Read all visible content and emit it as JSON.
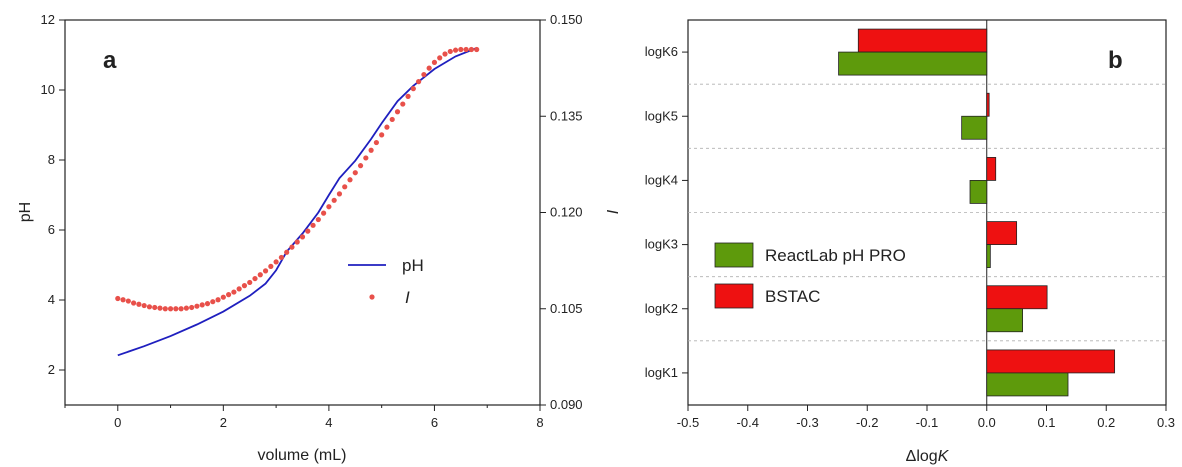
{
  "chart_data": [
    {
      "type": "line",
      "panel_label": "a",
      "xlabel": "volume (mL)",
      "ylabel": "pH",
      "y2label": "I",
      "xlim": [
        -1,
        8
      ],
      "ylim": [
        1,
        12
      ],
      "y2lim": [
        0.09,
        0.15
      ],
      "x_ticks": [
        0,
        2,
        4,
        6,
        8
      ],
      "y_ticks": [
        2,
        4,
        6,
        8,
        10,
        12
      ],
      "y2_ticks": [
        0.09,
        0.105,
        0.12,
        0.135,
        0.15
      ],
      "y2_tick_labels": [
        "0.090",
        "0.105",
        "0.120",
        "0.135",
        "0.150"
      ],
      "legend_position": "center-right",
      "series": [
        {
          "name": "pH",
          "kind": "line",
          "axis": "left",
          "color": "#1f1fbf",
          "x": [
            0,
            0.5,
            1.0,
            1.5,
            2.0,
            2.5,
            2.8,
            3.0,
            3.2,
            3.5,
            3.8,
            4.0,
            4.2,
            4.5,
            4.8,
            5.0,
            5.3,
            5.6,
            6.0,
            6.4,
            6.8
          ],
          "y": [
            2.42,
            2.68,
            2.97,
            3.3,
            3.67,
            4.12,
            4.47,
            4.85,
            5.38,
            5.9,
            6.5,
            7.0,
            7.48,
            7.98,
            8.6,
            9.05,
            9.68,
            10.12,
            10.6,
            10.96,
            11.2
          ]
        },
        {
          "name": "I",
          "kind": "scatter",
          "axis": "right",
          "color": "#e8504a",
          "x": [
            0,
            0.1,
            0.2,
            0.3,
            0.4,
            0.5,
            0.6,
            0.7,
            0.8,
            0.9,
            1.0,
            1.1,
            1.2,
            1.3,
            1.4,
            1.5,
            1.6,
            1.7,
            1.8,
            1.9,
            2.0,
            2.1,
            2.2,
            2.3,
            2.4,
            2.5,
            2.6,
            2.7,
            2.8,
            2.9,
            3.0,
            3.1,
            3.2,
            3.3,
            3.4,
            3.5,
            3.6,
            3.7,
            3.8,
            3.9,
            4.0,
            4.1,
            4.2,
            4.3,
            4.4,
            4.5,
            4.6,
            4.7,
            4.8,
            4.9,
            5.0,
            5.1,
            5.2,
            5.3,
            5.4,
            5.5,
            5.6,
            5.7,
            5.8,
            5.9,
            6.0,
            6.1,
            6.2,
            6.3,
            6.4,
            6.5,
            6.6,
            6.7,
            6.8
          ],
          "y": [
            0.1066,
            0.1064,
            0.1062,
            0.1059,
            0.1057,
            0.1055,
            0.1053,
            0.1052,
            0.1051,
            0.105,
            0.105,
            0.105,
            0.105,
            0.1051,
            0.1052,
            0.1054,
            0.1056,
            0.1058,
            0.1061,
            0.1064,
            0.1068,
            0.1072,
            0.1076,
            0.1081,
            0.1086,
            0.1091,
            0.1097,
            0.1103,
            0.1109,
            0.1116,
            0.1123,
            0.113,
            0.1138,
            0.1146,
            0.1154,
            0.1162,
            0.1171,
            0.118,
            0.1189,
            0.1199,
            0.1209,
            0.1219,
            0.1229,
            0.124,
            0.1251,
            0.1262,
            0.1273,
            0.1285,
            0.1297,
            0.1309,
            0.1321,
            0.1333,
            0.1345,
            0.1357,
            0.1369,
            0.1381,
            0.1393,
            0.1404,
            0.1415,
            0.1425,
            0.1434,
            0.1441,
            0.1447,
            0.1451,
            0.1453,
            0.1454,
            0.1454,
            0.1454,
            0.1454
          ]
        }
      ]
    },
    {
      "type": "bar",
      "orientation": "horizontal",
      "panel_label": "b",
      "xlabel": "ΔlogK",
      "xlim": [
        -0.5,
        0.3
      ],
      "x_ticks": [
        -0.5,
        -0.4,
        -0.3,
        -0.2,
        -0.1,
        0.0,
        0.1,
        0.2,
        0.3
      ],
      "x_tick_labels": [
        "-0.5",
        "-0.4",
        "-0.3",
        "-0.2",
        "-0.1",
        "0.0",
        "0.1",
        "0.2",
        "0.3"
      ],
      "categories": [
        "logK1",
        "logK2",
        "logK3",
        "logK4",
        "logK5",
        "logK6"
      ],
      "grid": "horizontal dashed separators",
      "legend_position": "center-left",
      "series": [
        {
          "name": "ReactLab pH PRO",
          "color": "#5e9a0c",
          "values": [
            0.136,
            0.06,
            0.006,
            -0.028,
            -0.042,
            -0.248
          ]
        },
        {
          "name": "BSTAC",
          "color": "#ee1111",
          "values": [
            0.214,
            0.101,
            0.05,
            0.015,
            0.004,
            -0.215
          ]
        }
      ]
    }
  ]
}
